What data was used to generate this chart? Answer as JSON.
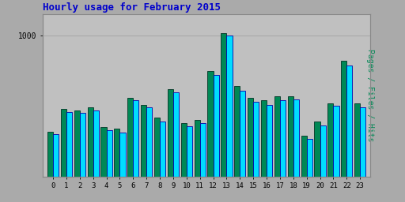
{
  "title": "Hourly usage for February 2015",
  "title_color": "#0000cc",
  "title_fontsize": 9,
  "hours": [
    0,
    1,
    2,
    3,
    4,
    5,
    6,
    7,
    8,
    9,
    10,
    11,
    12,
    13,
    14,
    15,
    16,
    17,
    18,
    19,
    20,
    21,
    22,
    23
  ],
  "pages": [
    320,
    480,
    470,
    490,
    350,
    340,
    560,
    510,
    420,
    620,
    380,
    400,
    750,
    1020,
    640,
    560,
    540,
    570,
    570,
    290,
    390,
    520,
    820,
    520
  ],
  "hits": [
    300,
    460,
    450,
    470,
    330,
    310,
    540,
    490,
    390,
    600,
    355,
    380,
    720,
    1000,
    610,
    530,
    510,
    540,
    545,
    270,
    365,
    500,
    790,
    490
  ],
  "bar_color_hits": "#00ddff",
  "bar_color_pages": "#008855",
  "bar_edge_color_hits": "#0000aa",
  "bar_edge_color_pages": "#003322",
  "background_color": "#aaaaaa",
  "plot_bg_color": "#c0c0c0",
  "ylabel": "Pages / Files / Hits",
  "ylabel_color": "#008855",
  "ylim": [
    0,
    1150
  ],
  "ytick_value": 1000,
  "ytick_label": "1000",
  "grid_color": "#aaaaaa",
  "bar_width": 0.42,
  "figsize": [
    5.12,
    2.56
  ],
  "dpi": 100
}
